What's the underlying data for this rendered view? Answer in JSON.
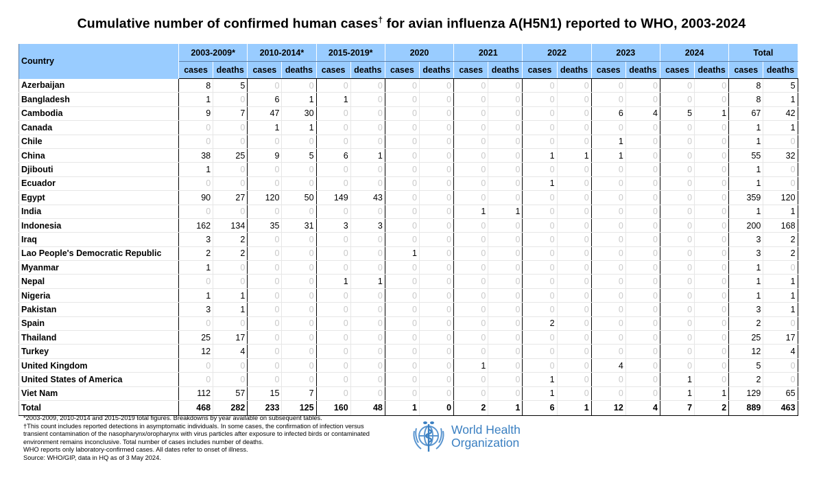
{
  "title": "Cumulative number of confirmed human cases",
  "title_mark": "†",
  "title_suffix": " for avian influenza A(H5N1) reported to WHO, 2003-2024",
  "header": {
    "country_label": "Country",
    "periods": [
      "2003-2009*",
      "2010-2014*",
      "2015-2019*",
      "2020",
      "2021",
      "2022",
      "2023",
      "2024",
      "Total"
    ],
    "cases_label": "cases",
    "deaths_label": "deaths"
  },
  "rows": [
    {
      "country": "Azerbaijan",
      "values": [
        8,
        5,
        0,
        0,
        0,
        0,
        0,
        0,
        0,
        0,
        0,
        0,
        0,
        0,
        0,
        0,
        8,
        5
      ]
    },
    {
      "country": "Bangladesh",
      "values": [
        1,
        0,
        6,
        1,
        1,
        0,
        0,
        0,
        0,
        0,
        0,
        0,
        0,
        0,
        0,
        0,
        8,
        1
      ]
    },
    {
      "country": "Cambodia",
      "values": [
        9,
        7,
        47,
        30,
        0,
        0,
        0,
        0,
        0,
        0,
        0,
        0,
        6,
        4,
        5,
        1,
        67,
        42
      ]
    },
    {
      "country": "Canada",
      "values": [
        0,
        0,
        1,
        1,
        0,
        0,
        0,
        0,
        0,
        0,
        0,
        0,
        0,
        0,
        0,
        0,
        1,
        1
      ]
    },
    {
      "country": "Chile",
      "values": [
        0,
        0,
        0,
        0,
        0,
        0,
        0,
        0,
        0,
        0,
        0,
        0,
        1,
        0,
        0,
        0,
        1,
        0
      ]
    },
    {
      "country": "China",
      "values": [
        38,
        25,
        9,
        5,
        6,
        1,
        0,
        0,
        0,
        0,
        1,
        1,
        1,
        0,
        0,
        0,
        55,
        32
      ]
    },
    {
      "country": "Djibouti",
      "values": [
        1,
        0,
        0,
        0,
        0,
        0,
        0,
        0,
        0,
        0,
        0,
        0,
        0,
        0,
        0,
        0,
        1,
        0
      ]
    },
    {
      "country": "Ecuador",
      "values": [
        0,
        0,
        0,
        0,
        0,
        0,
        0,
        0,
        0,
        0,
        1,
        0,
        0,
        0,
        0,
        0,
        1,
        0
      ]
    },
    {
      "country": "Egypt",
      "values": [
        90,
        27,
        120,
        50,
        149,
        43,
        0,
        0,
        0,
        0,
        0,
        0,
        0,
        0,
        0,
        0,
        359,
        120
      ]
    },
    {
      "country": "India",
      "values": [
        0,
        0,
        0,
        0,
        0,
        0,
        0,
        0,
        1,
        1,
        0,
        0,
        0,
        0,
        0,
        0,
        1,
        1
      ]
    },
    {
      "country": "Indonesia",
      "values": [
        162,
        134,
        35,
        31,
        3,
        3,
        0,
        0,
        0,
        0,
        0,
        0,
        0,
        0,
        0,
        0,
        200,
        168
      ]
    },
    {
      "country": "Iraq",
      "values": [
        3,
        2,
        0,
        0,
        0,
        0,
        0,
        0,
        0,
        0,
        0,
        0,
        0,
        0,
        0,
        0,
        3,
        2
      ]
    },
    {
      "country": "Lao People's Democratic Republic",
      "values": [
        2,
        2,
        0,
        0,
        0,
        0,
        1,
        0,
        0,
        0,
        0,
        0,
        0,
        0,
        0,
        0,
        3,
        2
      ]
    },
    {
      "country": "Myanmar",
      "values": [
        1,
        0,
        0,
        0,
        0,
        0,
        0,
        0,
        0,
        0,
        0,
        0,
        0,
        0,
        0,
        0,
        1,
        0
      ]
    },
    {
      "country": "Nepal",
      "values": [
        0,
        0,
        0,
        0,
        1,
        1,
        0,
        0,
        0,
        0,
        0,
        0,
        0,
        0,
        0,
        0,
        1,
        1
      ]
    },
    {
      "country": "Nigeria",
      "values": [
        1,
        1,
        0,
        0,
        0,
        0,
        0,
        0,
        0,
        0,
        0,
        0,
        0,
        0,
        0,
        0,
        1,
        1
      ]
    },
    {
      "country": "Pakistan",
      "values": [
        3,
        1,
        0,
        0,
        0,
        0,
        0,
        0,
        0,
        0,
        0,
        0,
        0,
        0,
        0,
        0,
        3,
        1
      ]
    },
    {
      "country": "Spain",
      "values": [
        0,
        0,
        0,
        0,
        0,
        0,
        0,
        0,
        0,
        0,
        2,
        0,
        0,
        0,
        0,
        0,
        2,
        0
      ]
    },
    {
      "country": "Thailand",
      "values": [
        25,
        17,
        0,
        0,
        0,
        0,
        0,
        0,
        0,
        0,
        0,
        0,
        0,
        0,
        0,
        0,
        25,
        17
      ]
    },
    {
      "country": "Turkey",
      "values": [
        12,
        4,
        0,
        0,
        0,
        0,
        0,
        0,
        0,
        0,
        0,
        0,
        0,
        0,
        0,
        0,
        12,
        4
      ]
    },
    {
      "country": "United Kingdom",
      "values": [
        0,
        0,
        0,
        0,
        0,
        0,
        0,
        0,
        1,
        0,
        0,
        0,
        4,
        0,
        0,
        0,
        5,
        0
      ]
    },
    {
      "country": "United States of America",
      "values": [
        0,
        0,
        0,
        0,
        0,
        0,
        0,
        0,
        0,
        0,
        1,
        0,
        0,
        0,
        1,
        0,
        2,
        0
      ]
    },
    {
      "country": "Viet Nam",
      "values": [
        112,
        57,
        15,
        7,
        0,
        0,
        0,
        0,
        0,
        0,
        1,
        0,
        0,
        0,
        1,
        1,
        129,
        65
      ]
    }
  ],
  "total": {
    "label": "Total",
    "values": [
      468,
      282,
      233,
      125,
      160,
      48,
      1,
      0,
      2,
      1,
      6,
      1,
      12,
      4,
      7,
      2,
      889,
      463
    ]
  },
  "footnotes": [
    "*2003-2009, 2010-2014 and 2015-2019 total figures. Breakdowns by year available on subsequent tables.",
    "†This count includes reported detections in asymptomatic individuals. In some cases, the confirmation of infection versus transient contamination of the nasopharynx/oropharynx with virus particles after exposure to infected birds or contaminated environment remains inconclusive. Total number of cases includes number of deaths.",
    "WHO reports only laboratory-confirmed cases. All dates refer to onset of illness.",
    "Source: WHO/GIP, data in HQ as of 3 May 2024."
  ],
  "logo": {
    "line1": "World Health",
    "line2": "Organization",
    "color": "#3a7fc1"
  },
  "colors": {
    "header_bg": "#99ccff",
    "zero_text": "#c8c8c8"
  }
}
